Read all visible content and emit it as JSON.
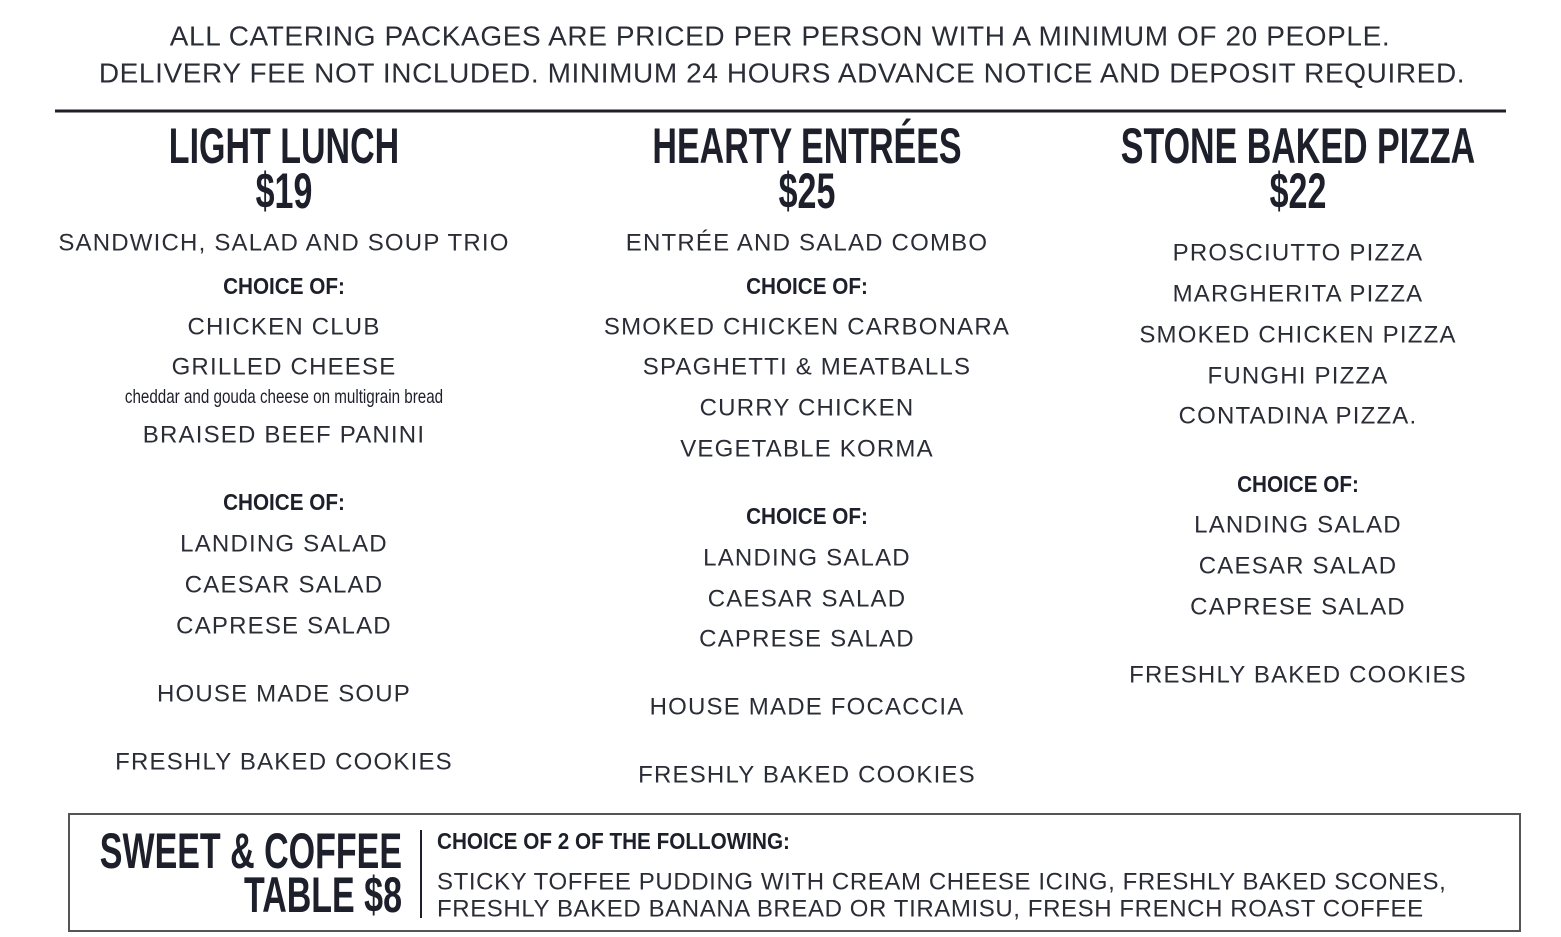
{
  "header": {
    "lines": [
      "ALL CATERING PACKAGES ARE PRICED PER PERSON WITH A MINIMUM OF 20 PEOPLE.",
      "DELIVERY FEE NOT INCLUDED. MINIMUM 24 HOURS ADVANCE NOTICE AND DEPOSIT REQUIRED."
    ]
  },
  "columns": [
    {
      "title": "LIGHT LUNCH",
      "price": "$19",
      "items": [
        "SANDWICH, SALAD AND SOUP TRIO",
        "CHOICE OF:",
        "CHICKEN CLUB",
        "GRILLED CHEESE",
        "cheddar and gouda cheese on multigrain bread",
        "BRAISED BEEF PANINI",
        "CHOICE OF:",
        "LANDING SALAD",
        "CAESAR SALAD",
        "CAPRESE SALAD",
        "HOUSE MADE SOUP",
        "FRESHLY BAKED COOKIES"
      ]
    },
    {
      "title": "HEARTY ENTRÉES",
      "price": "$25",
      "items": [
        "ENTRÉE AND SALAD COMBO",
        "CHOICE OF:",
        "SMOKED CHICKEN CARBONARA",
        "SPAGHETTI & MEATBALLS",
        "CURRY CHICKEN",
        "VEGETABLE KORMA",
        "CHOICE OF:",
        "LANDING SALAD",
        "CAESAR SALAD",
        "CAPRESE SALAD",
        "HOUSE MADE FOCACCIA",
        "FRESHLY BAKED COOKIES"
      ]
    },
    {
      "title": "STONE BAKED PIZZA",
      "price": "$22",
      "items": [
        "PROSCIUTTO PIZZA",
        "MARGHERITA PIZZA",
        "SMOKED CHICKEN PIZZA",
        "FUNGHI PIZZA",
        "CONTADINA PIZZA.",
        "CHOICE OF:",
        "LANDING SALAD",
        "CAESAR SALAD",
        "CAPRESE SALAD",
        "FRESHLY BAKED COOKIES"
      ]
    }
  ],
  "footer": {
    "title_lines": [
      "SWEET & COFFEE",
      "TABLE $8"
    ],
    "choice": "CHOICE OF 2 OF THE FOLLOWING:",
    "lines": [
      "STICKY TOFFEE PUDDING WITH CREAM CHEESE ICING, FRESHLY BAKED SCONES,",
      "FRESHLY BAKED BANANA BREAD OR TIRAMISU, FRESH FRENCH ROAST COFFEE"
    ]
  }
}
